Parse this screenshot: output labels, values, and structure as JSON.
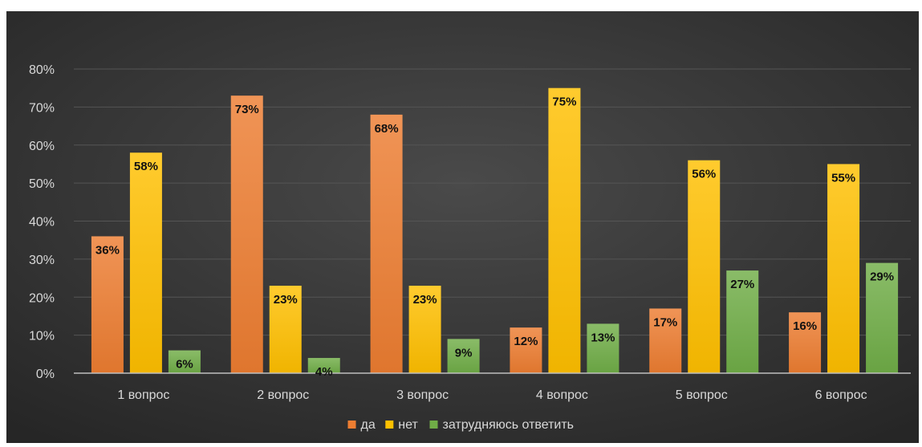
{
  "chart_data": {
    "type": "bar",
    "categories": [
      "1 вопрос",
      "2 вопрос",
      "3 вопрос",
      "4 вопрос",
      "5 вопрос",
      "6 вопрос"
    ],
    "series": [
      {
        "name": "да",
        "values": [
          36,
          73,
          68,
          12,
          17,
          16
        ],
        "color": "#ed7d31",
        "labels": [
          "36%",
          "73%",
          "68%",
          "12%",
          "17%",
          "16%"
        ]
      },
      {
        "name": "нет",
        "values": [
          58,
          23,
          23,
          75,
          56,
          55
        ],
        "color": "#ffc000",
        "labels": [
          "58%",
          "23%",
          "23%",
          "75%",
          "56%",
          "55%"
        ]
      },
      {
        "name": "затрудняюсь ответить",
        "values": [
          6,
          4,
          9,
          13,
          27,
          29
        ],
        "color": "#70ad47",
        "labels": [
          "6%",
          "4%",
          "9%",
          "13%",
          "27%",
          "29%"
        ]
      }
    ],
    "yticks": [
      "0%",
      "10%",
      "20%",
      "30%",
      "40%",
      "50%",
      "60%",
      "70%",
      "80%"
    ],
    "ylim": [
      0,
      80
    ],
    "y_unit": "%",
    "grid": true,
    "legend_position": "bottom",
    "title": "",
    "xlabel": "",
    "ylabel": ""
  },
  "colors": {
    "background": "#3a3a3a",
    "gridline": "#555555",
    "axis": "#bfbfbf",
    "text": "#d9d9d9"
  }
}
